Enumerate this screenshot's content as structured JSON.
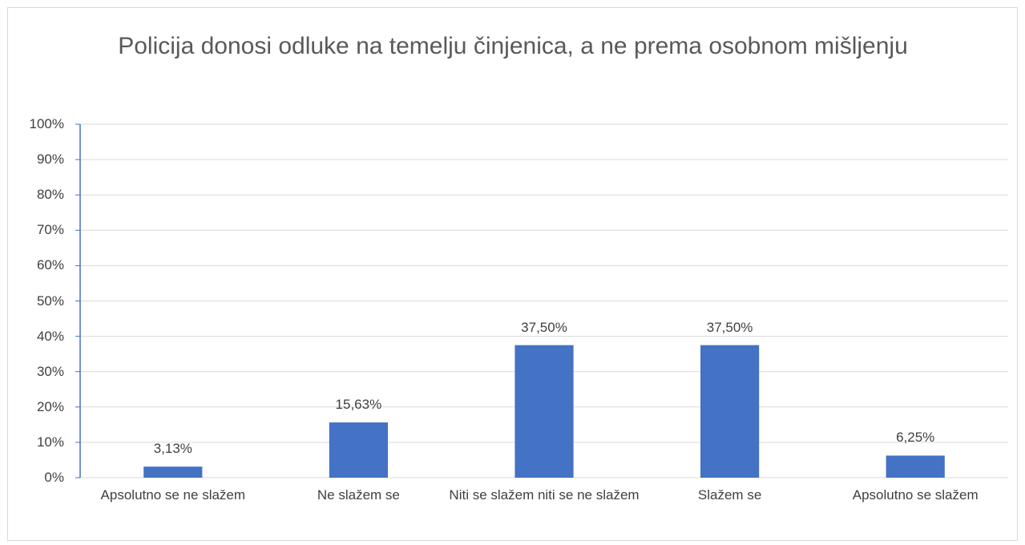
{
  "chart_data": {
    "type": "bar",
    "title": "Policija donosi odluke na temelju činjenica, a ne prema osobnom mišljenju",
    "categories": [
      "Apsolutno se ne slažem",
      "Ne slažem se",
      "Niti se slažem niti se ne slažem",
      "Slažem se",
      "Apsolutno se slažem"
    ],
    "values": [
      3.13,
      15.63,
      37.5,
      37.5,
      6.25
    ],
    "value_labels": [
      "3,13%",
      "15,63%",
      "37,50%",
      "37,50%",
      "6,25%"
    ],
    "color": "#4472c4",
    "ylim": [
      0,
      100
    ],
    "yticks": [
      {
        "value": 0,
        "label": "0%"
      },
      {
        "value": 10,
        "label": "10%"
      },
      {
        "value": 20,
        "label": "20%"
      },
      {
        "value": 30,
        "label": "30%"
      },
      {
        "value": 40,
        "label": "40%"
      },
      {
        "value": 50,
        "label": "50%"
      },
      {
        "value": 60,
        "label": "60%"
      },
      {
        "value": 70,
        "label": "70%"
      },
      {
        "value": 80,
        "label": "80%"
      },
      {
        "value": 90,
        "label": "90%"
      },
      {
        "value": 100,
        "label": "100%"
      }
    ],
    "grid": true
  }
}
